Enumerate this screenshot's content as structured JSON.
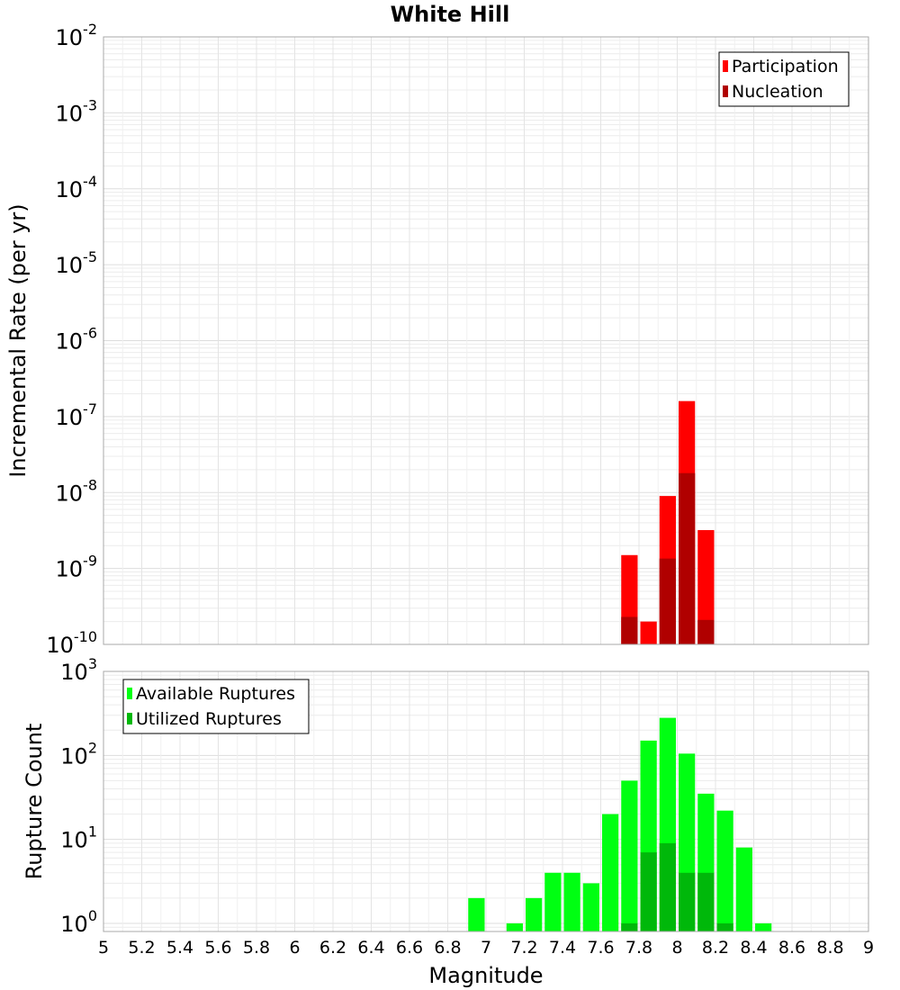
{
  "chart_data": {
    "type": "bar",
    "title": "White Hill",
    "xlabel": "Magnitude",
    "x_ticks": [
      "5",
      "5.2",
      "5.4",
      "5.6",
      "5.8",
      "6",
      "6.2",
      "6.4",
      "6.6",
      "6.8",
      "7",
      "7.2",
      "7.4",
      "7.6",
      "7.8",
      "8",
      "8.2",
      "8.4",
      "8.6",
      "8.8",
      "9"
    ],
    "xlim": [
      5,
      9
    ],
    "bin_width": 0.1,
    "panels": [
      {
        "ylabel": "Incremental Rate (per yr)",
        "yscale": "log",
        "ylim": [
          1e-10,
          0.01
        ],
        "y_tick_bases": [
          "10",
          "10",
          "10",
          "10",
          "10",
          "10",
          "10",
          "10",
          "10"
        ],
        "y_tick_exponents": [
          "-10",
          "-9",
          "-8",
          "-7",
          "-6",
          "-5",
          "-4",
          "-3",
          "-2"
        ],
        "legend_position": "top-right",
        "series": [
          {
            "name": "Participation",
            "color": "#ff0000",
            "x": [
              7.75,
              7.85,
              7.95,
              8.05,
              8.15
            ],
            "values": [
              1.5e-09,
              2e-10,
              9e-09,
              1.6e-07,
              3.2e-09
            ]
          },
          {
            "name": "Nucleation",
            "color": "#b00000",
            "x": [
              7.75,
              7.85,
              7.95,
              8.05,
              8.15
            ],
            "values": [
              2.3e-10,
              0,
              1.35e-09,
              1.8e-08,
              2.1e-10
            ]
          }
        ]
      },
      {
        "ylabel": "Rupture Count",
        "yscale": "log",
        "ylim": [
          0.8,
          1000
        ],
        "y_tick_bases": [
          "10",
          "10",
          "10",
          "10"
        ],
        "y_tick_exponents": [
          "0",
          "1",
          "2",
          "3"
        ],
        "legend_position": "top-left",
        "series": [
          {
            "name": "Available Ruptures",
            "color": "#00ff12",
            "x": [
              6.95,
              7.15,
              7.25,
              7.35,
              7.45,
              7.55,
              7.65,
              7.75,
              7.85,
              7.95,
              8.05,
              8.15,
              8.25,
              8.35,
              8.45
            ],
            "values": [
              2,
              1,
              2,
              4,
              4,
              3,
              20,
              50,
              150,
              280,
              105,
              35,
              22,
              8,
              1
            ]
          },
          {
            "name": "Utilized Ruptures",
            "color": "#00b80a",
            "x": [
              7.75,
              7.85,
              7.95,
              8.05,
              8.15,
              8.25
            ],
            "values": [
              1,
              7,
              9,
              4,
              4,
              1
            ]
          }
        ]
      }
    ]
  }
}
